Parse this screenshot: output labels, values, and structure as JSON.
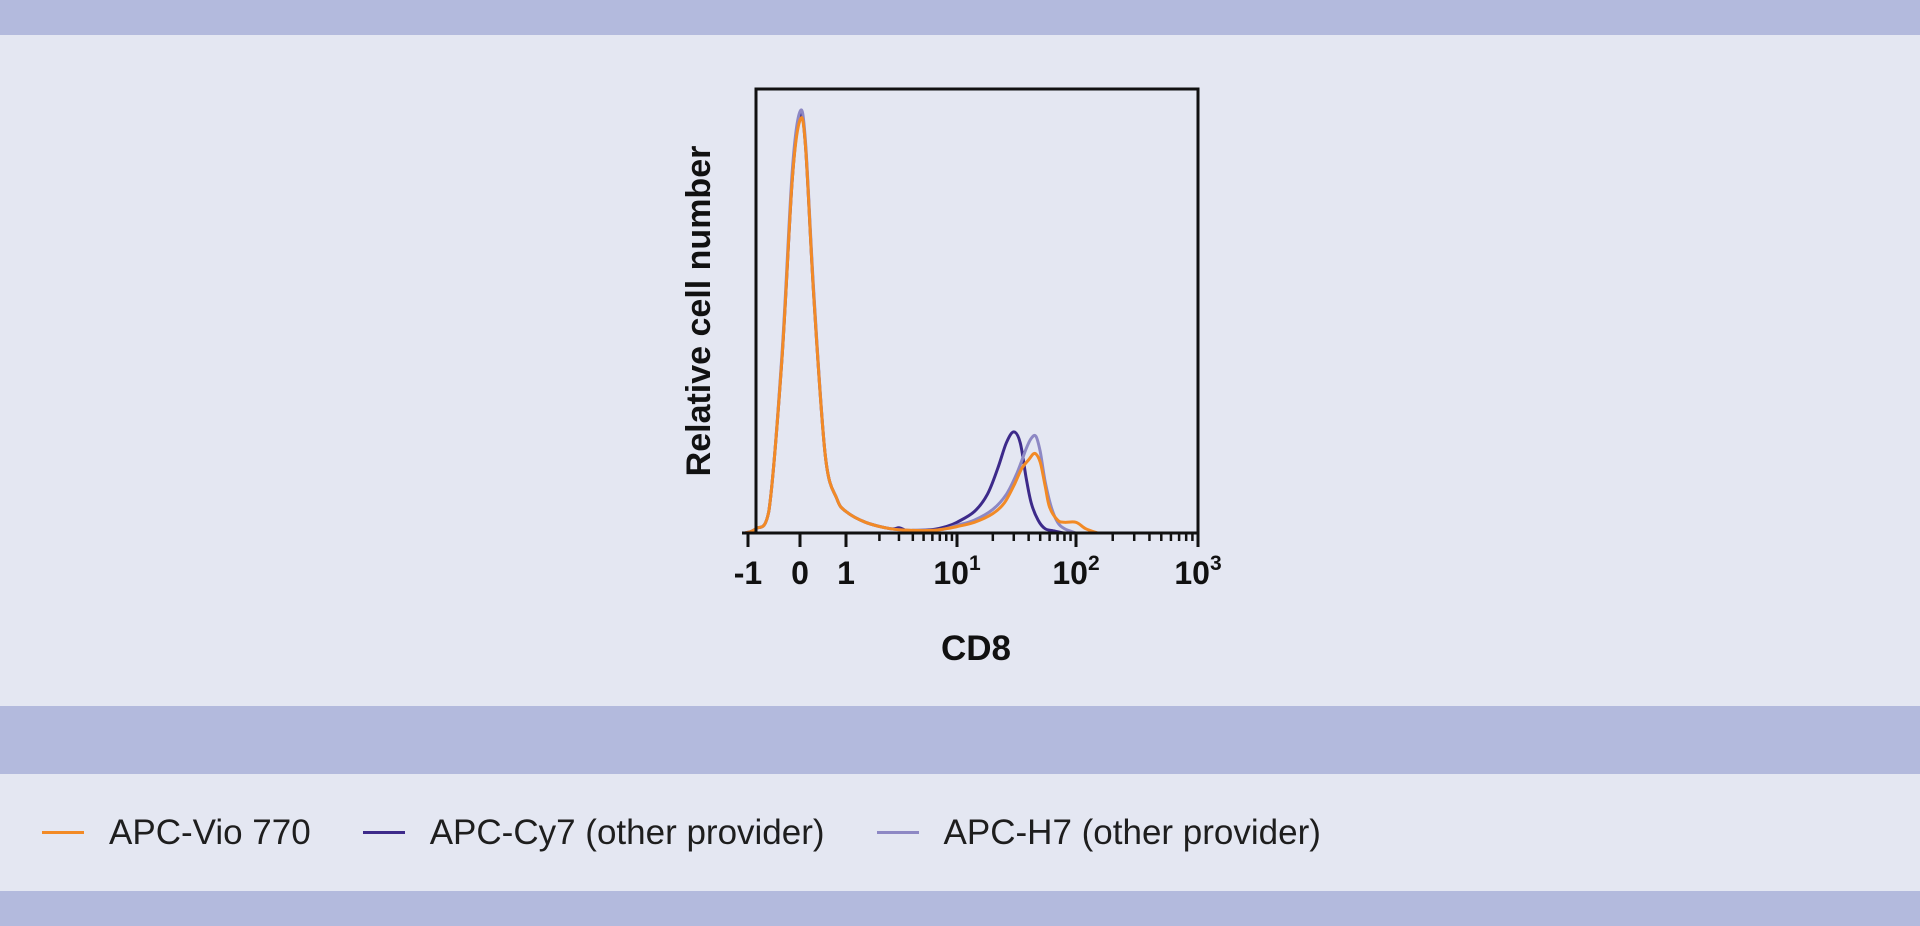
{
  "chart_data": {
    "type": "line",
    "xlabel": "CD8",
    "ylabel": "Relative cell number",
    "x_scale": "biexponential",
    "xticks": [
      {
        "value": -1,
        "label": "-1"
      },
      {
        "value": 0,
        "label": "0"
      },
      {
        "value": 1,
        "label": "1"
      },
      {
        "value": 10,
        "label": "10",
        "sup": "1"
      },
      {
        "value": 100,
        "label": "10",
        "sup": "2"
      },
      {
        "value": 1000,
        "label": "10",
        "sup": "3"
      }
    ],
    "xlim": [
      -1.1,
      1000
    ],
    "ylim": [
      0,
      100
    ],
    "grid": false,
    "legend_position": "bottom",
    "series": [
      {
        "name": "APC-Vio 770",
        "color": "#f28a26",
        "x": [
          -1.05,
          -0.85,
          -0.6,
          -0.35,
          -0.15,
          0,
          0.12,
          0.3,
          0.55,
          0.8,
          1.0,
          1.5,
          2.5,
          4,
          6,
          8,
          10,
          14,
          20,
          25,
          30,
          35,
          40,
          45,
          50,
          55,
          60,
          70,
          80,
          100,
          120,
          150
        ],
        "y": [
          0,
          1,
          5,
          40,
          82,
          96,
          90,
          55,
          18,
          8,
          5,
          2.5,
          1,
          0.6,
          0.6,
          1,
          1.5,
          2.5,
          4.5,
          7,
          11,
          15,
          17,
          18.5,
          16.5,
          11,
          6,
          3,
          2.5,
          2.5,
          1,
          0
        ]
      },
      {
        "name": "APC-Cy7 (other provider)",
        "color": "#3d2a8a",
        "x": [
          -1.05,
          -0.85,
          -0.6,
          -0.35,
          -0.15,
          0,
          0.12,
          0.3,
          0.55,
          0.8,
          1.0,
          1.5,
          2.5,
          3,
          3.5,
          4,
          6,
          8,
          10,
          14,
          18,
          22,
          26,
          30,
          34,
          38,
          42,
          48,
          55,
          65,
          80,
          100
        ],
        "y": [
          0,
          1,
          5,
          40,
          82,
          97,
          90,
          55,
          18,
          8,
          5,
          2.5,
          1,
          1.2,
          0.6,
          0.6,
          0.8,
          1.5,
          2.5,
          5,
          9,
          15,
          21,
          23.5,
          21,
          13,
          7,
          3,
          1,
          0.5,
          0,
          0
        ]
      },
      {
        "name": "APC-H7 (other provider)",
        "color": "#8d88c4",
        "x": [
          -1.05,
          -0.85,
          -0.6,
          -0.35,
          -0.15,
          0,
          0.12,
          0.3,
          0.55,
          0.8,
          1.0,
          1.5,
          2.5,
          4,
          6,
          8,
          10,
          14,
          20,
          26,
          32,
          38,
          42,
          46,
          50,
          55,
          62,
          70,
          80,
          100
        ],
        "y": [
          0,
          1,
          5,
          41,
          84,
          98,
          91,
          56,
          18,
          8,
          5,
          2.5,
          1,
          0.6,
          0.6,
          1,
          1.8,
          3,
          5.5,
          9,
          14,
          19.5,
          22,
          22.5,
          19,
          12,
          6,
          2.5,
          1,
          0
        ]
      }
    ]
  }
}
